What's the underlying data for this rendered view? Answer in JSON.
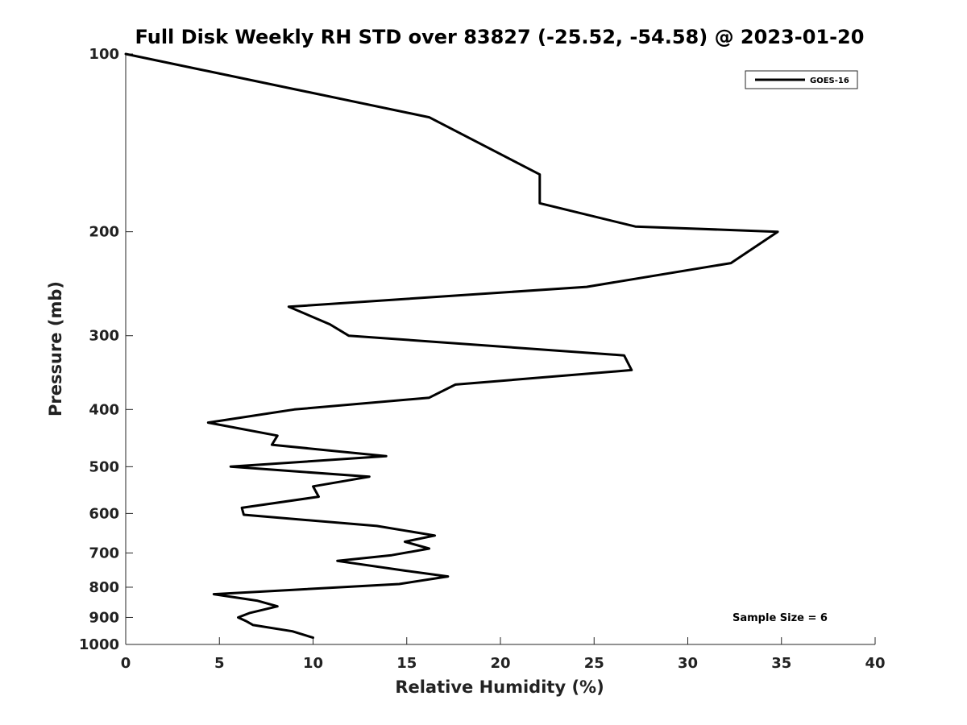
{
  "chart_data": {
    "type": "line",
    "title": "Full Disk Weekly RH STD over 83827 (-25.52, -54.58) @ 2023-01-20",
    "xlabel": "Relative Humidity (%)",
    "ylabel": "Pressure (mb)",
    "xlim": [
      0,
      40
    ],
    "ylim": [
      100,
      1000
    ],
    "y_scale": "log",
    "y_inverted": true,
    "grid": false,
    "legend_position": "top-right",
    "x_ticks": [
      0,
      5,
      10,
      15,
      20,
      25,
      30,
      35,
      40
    ],
    "y_ticks": [
      100,
      200,
      300,
      400,
      500,
      600,
      700,
      800,
      900,
      1000
    ],
    "annotation": "Sample Size = 6",
    "series": [
      {
        "name": "GOES-16",
        "color": "#000000",
        "points": [
          [
            0,
            100
          ],
          [
            16.2,
            128
          ],
          [
            22.1,
            160
          ],
          [
            22.1,
            179
          ],
          [
            27.2,
            196
          ],
          [
            34.8,
            200
          ],
          [
            32.3,
            226
          ],
          [
            24.6,
            248
          ],
          [
            8.7,
            268
          ],
          [
            10.9,
            287
          ],
          [
            11.9,
            300
          ],
          [
            26.6,
            324
          ],
          [
            27.0,
            343
          ],
          [
            17.6,
            363
          ],
          [
            16.2,
            382
          ],
          [
            9.0,
            400
          ],
          [
            4.4,
            421
          ],
          [
            8.1,
            443
          ],
          [
            7.8,
            459
          ],
          [
            13.9,
            480
          ],
          [
            5.6,
            500
          ],
          [
            13.0,
            520
          ],
          [
            10.0,
            540
          ],
          [
            10.3,
            562
          ],
          [
            6.2,
            587
          ],
          [
            6.3,
            603
          ],
          [
            13.4,
            630
          ],
          [
            16.5,
            654
          ],
          [
            14.9,
            670
          ],
          [
            16.2,
            688
          ],
          [
            14.2,
            706
          ],
          [
            11.3,
            722
          ],
          [
            14.9,
            750
          ],
          [
            17.2,
            767
          ],
          [
            14.6,
            790
          ],
          [
            4.7,
            822
          ],
          [
            7.0,
            843
          ],
          [
            8.1,
            862
          ],
          [
            6.6,
            885
          ],
          [
            6.0,
            900
          ],
          [
            6.4,
            912
          ],
          [
            6.8,
            927
          ],
          [
            8.9,
            950
          ],
          [
            10.0,
            974
          ]
        ]
      }
    ]
  }
}
